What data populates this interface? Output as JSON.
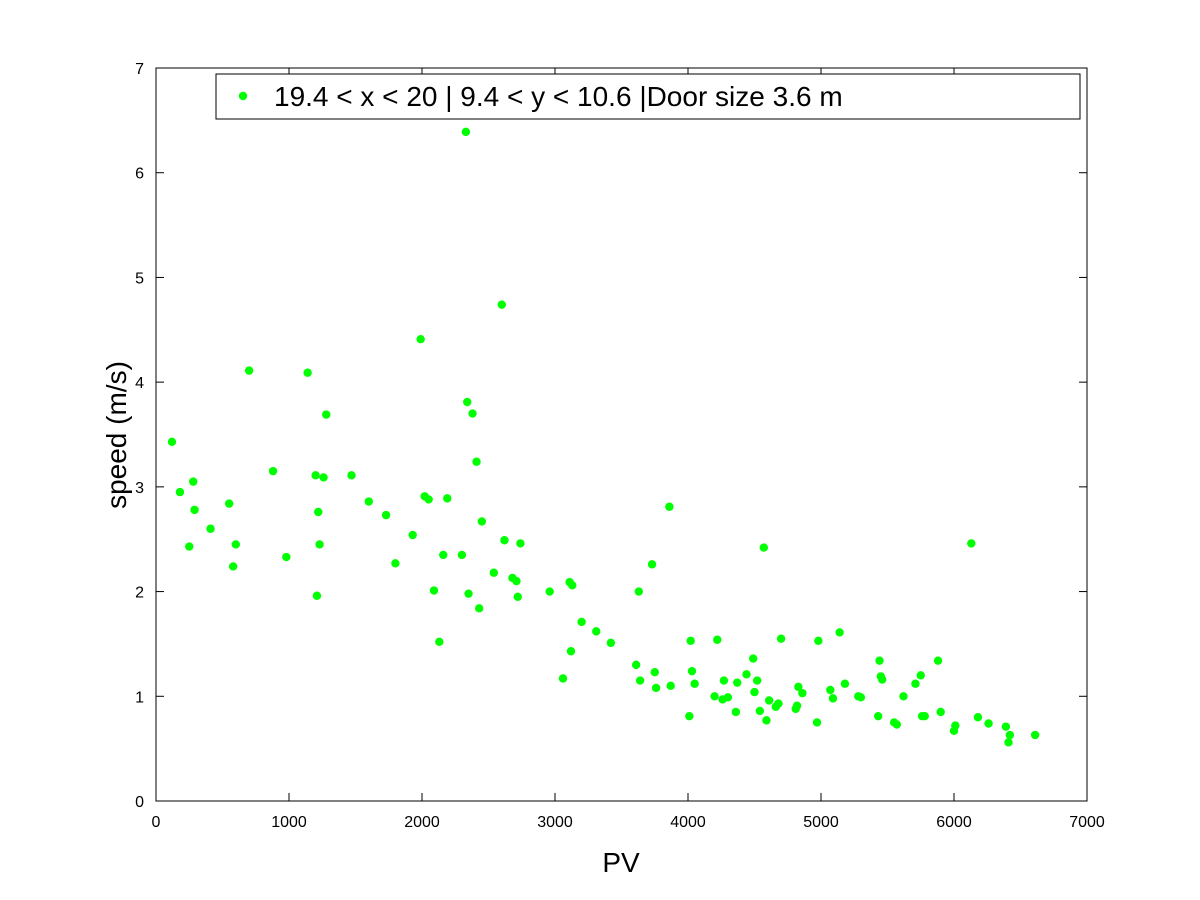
{
  "chart_data": {
    "type": "scatter",
    "xlabel": "PV",
    "ylabel": "speed (m/s)",
    "xlim": [
      0,
      7000
    ],
    "ylim": [
      0,
      7
    ],
    "xticks": [
      "0",
      "1000",
      "2000",
      "3000",
      "4000",
      "5000",
      "6000",
      "7000"
    ],
    "yticks": [
      "0",
      "1",
      "2",
      "3",
      "4",
      "5",
      "6",
      "7"
    ],
    "grid": false,
    "legend_position": "top",
    "series": [
      {
        "name": "19.4 < x < 20 | 9.4 < y < 10.6 |Door size 3.6 m",
        "color": "#00ff00",
        "points": [
          [
            120,
            3.43
          ],
          [
            180,
            2.95
          ],
          [
            250,
            2.43
          ],
          [
            280,
            3.05
          ],
          [
            290,
            2.78
          ],
          [
            410,
            2.6
          ],
          [
            550,
            2.84
          ],
          [
            580,
            2.24
          ],
          [
            600,
            2.45
          ],
          [
            700,
            4.11
          ],
          [
            880,
            3.15
          ],
          [
            980,
            2.33
          ],
          [
            1140,
            4.09
          ],
          [
            1200,
            3.11
          ],
          [
            1210,
            1.96
          ],
          [
            1220,
            2.76
          ],
          [
            1230,
            2.45
          ],
          [
            1260,
            3.09
          ],
          [
            1280,
            3.69
          ],
          [
            1470,
            3.11
          ],
          [
            1600,
            2.86
          ],
          [
            1730,
            2.73
          ],
          [
            1800,
            2.27
          ],
          [
            1930,
            2.54
          ],
          [
            1990,
            4.41
          ],
          [
            2020,
            2.91
          ],
          [
            2050,
            2.88
          ],
          [
            2090,
            2.01
          ],
          [
            2130,
            1.52
          ],
          [
            2160,
            2.35
          ],
          [
            2190,
            2.89
          ],
          [
            2300,
            2.35
          ],
          [
            2330,
            6.39
          ],
          [
            2340,
            3.81
          ],
          [
            2350,
            1.98
          ],
          [
            2380,
            3.7
          ],
          [
            2410,
            3.24
          ],
          [
            2430,
            1.84
          ],
          [
            2450,
            2.67
          ],
          [
            2540,
            2.18
          ],
          [
            2600,
            4.74
          ],
          [
            2620,
            2.49
          ],
          [
            2680,
            2.13
          ],
          [
            2710,
            2.1
          ],
          [
            2720,
            1.95
          ],
          [
            2740,
            2.46
          ],
          [
            2960,
            2.0
          ],
          [
            3060,
            1.17
          ],
          [
            3110,
            2.09
          ],
          [
            3120,
            1.43
          ],
          [
            3130,
            2.06
          ],
          [
            3200,
            1.71
          ],
          [
            3310,
            1.62
          ],
          [
            3420,
            1.51
          ],
          [
            3610,
            1.3
          ],
          [
            3630,
            2.0
          ],
          [
            3640,
            1.15
          ],
          [
            3730,
            2.26
          ],
          [
            3750,
            1.23
          ],
          [
            3760,
            1.08
          ],
          [
            3860,
            2.81
          ],
          [
            3870,
            1.1
          ],
          [
            4010,
            0.81
          ],
          [
            4020,
            1.53
          ],
          [
            4030,
            1.24
          ],
          [
            4050,
            1.12
          ],
          [
            4200,
            1.0
          ],
          [
            4220,
            1.54
          ],
          [
            4260,
            0.97
          ],
          [
            4270,
            1.15
          ],
          [
            4300,
            0.99
          ],
          [
            4360,
            0.85
          ],
          [
            4370,
            1.13
          ],
          [
            4440,
            1.21
          ],
          [
            4490,
            1.36
          ],
          [
            4500,
            1.04
          ],
          [
            4520,
            1.15
          ],
          [
            4540,
            0.86
          ],
          [
            4570,
            2.42
          ],
          [
            4590,
            0.77
          ],
          [
            4610,
            0.96
          ],
          [
            4660,
            0.9
          ],
          [
            4680,
            0.93
          ],
          [
            4700,
            1.55
          ],
          [
            4810,
            0.88
          ],
          [
            4820,
            0.91
          ],
          [
            4830,
            1.09
          ],
          [
            4860,
            1.03
          ],
          [
            4970,
            0.75
          ],
          [
            4980,
            1.53
          ],
          [
            5070,
            1.06
          ],
          [
            5090,
            0.98
          ],
          [
            5140,
            1.61
          ],
          [
            5180,
            1.12
          ],
          [
            5280,
            1.0
          ],
          [
            5300,
            0.99
          ],
          [
            5430,
            0.81
          ],
          [
            5440,
            1.34
          ],
          [
            5450,
            1.19
          ],
          [
            5460,
            1.16
          ],
          [
            5550,
            0.75
          ],
          [
            5570,
            0.73
          ],
          [
            5620,
            1.0
          ],
          [
            5710,
            1.12
          ],
          [
            5750,
            1.2
          ],
          [
            5760,
            0.81
          ],
          [
            5780,
            0.81
          ],
          [
            5880,
            1.34
          ],
          [
            5900,
            0.85
          ],
          [
            6000,
            0.67
          ],
          [
            6010,
            0.72
          ],
          [
            6130,
            2.46
          ],
          [
            6180,
            0.8
          ],
          [
            6260,
            0.74
          ],
          [
            6390,
            0.71
          ],
          [
            6410,
            0.56
          ],
          [
            6420,
            0.63
          ],
          [
            6610,
            0.63
          ]
        ]
      }
    ]
  }
}
